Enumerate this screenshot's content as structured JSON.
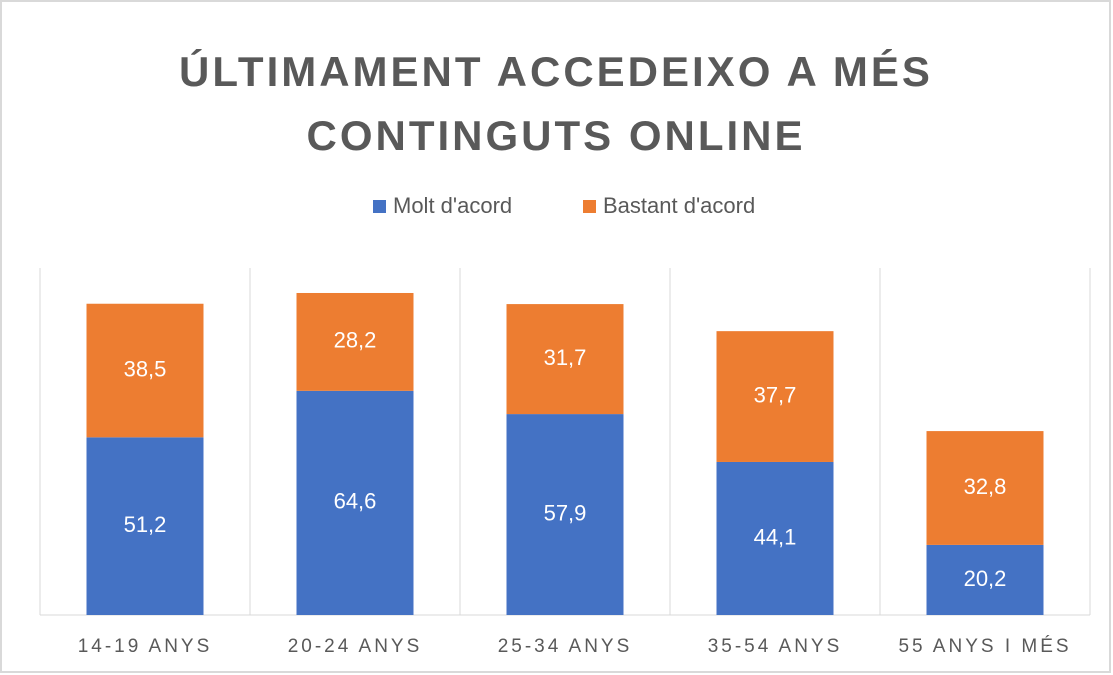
{
  "chart_data": {
    "type": "stacked_bar",
    "title": "ÚLTIMAMENT ACCEDEIXO A MÉS CONTINGUTS ONLINE",
    "categories": [
      "14-19 ANYS",
      "20-24 ANYS",
      "25-34 ANYS",
      "35-54 ANYS",
      "55 ANYS I MÉS"
    ],
    "series": [
      {
        "name": "Molt d'acord",
        "color": "#4472c4",
        "values": [
          51.2,
          64.6,
          57.9,
          44.1,
          20.2
        ],
        "value_labels": [
          "51,2",
          "64,6",
          "57,9",
          "44,1",
          "20,2"
        ]
      },
      {
        "name": "Bastant d'acord",
        "color": "#ed7d31",
        "values": [
          38.5,
          28.2,
          31.7,
          37.7,
          32.8
        ],
        "value_labels": [
          "38,5",
          "28,2",
          "31,7",
          "37,7",
          "32,8"
        ]
      }
    ],
    "ylim": [
      0,
      100
    ],
    "legend": "top"
  }
}
